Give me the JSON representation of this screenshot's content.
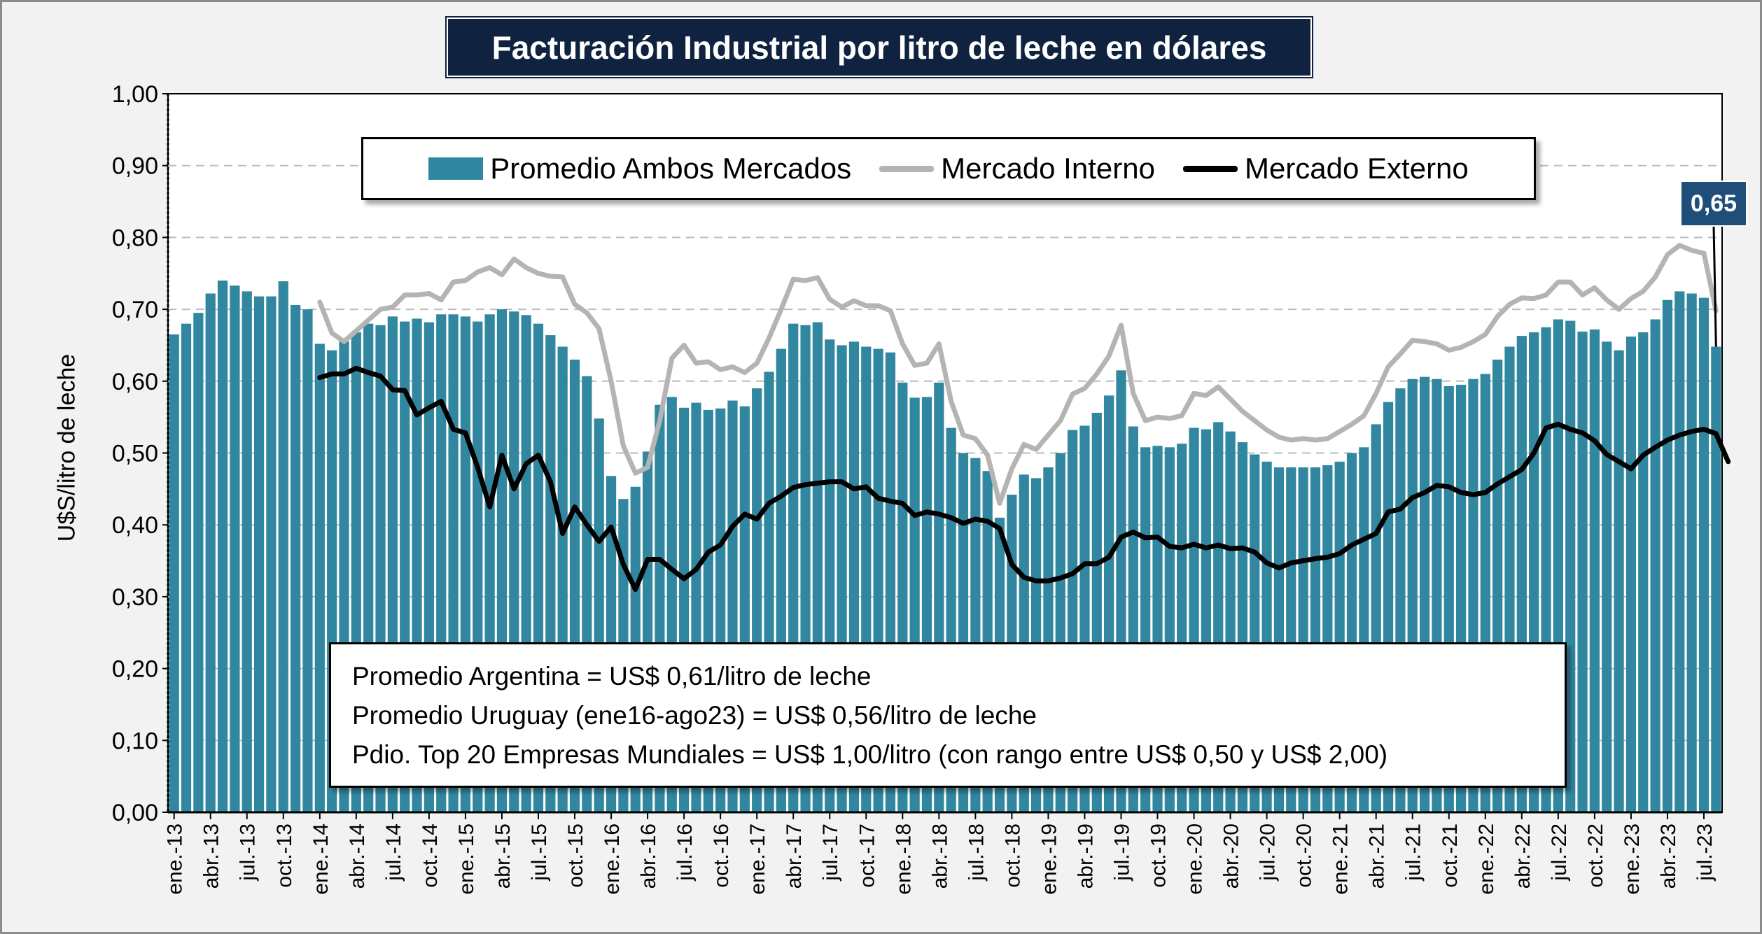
{
  "header": {
    "title": "Facturación Industrial por litro de leche en dólares"
  },
  "annotations": {
    "notes": [
      "Promedio Argentina = US$ 0,61/litro de leche",
      "Promedio Uruguay (ene16-ago23) = US$ 0,56/litro de leche",
      "Pdio. Top 20 Empresas Mundiales = US$ 1,00/litro (con rango entre US$ 0,50 y US$ 2,00)"
    ],
    "last_value_label": "0,65"
  },
  "colors": {
    "bar": "#31879f",
    "internal": "#b4b4b4",
    "external": "#000000",
    "title_bg": "#0f2340",
    "label_bg": "#1f4e79"
  },
  "chart_data": {
    "type": "bar",
    "title": "Facturación Industrial por litro de leche en dólares",
    "ylabel": "U$S/litro de leche",
    "xlabel": "",
    "ylim": [
      0,
      1
    ],
    "y_ticks": [
      "0,00",
      "0,10",
      "0,20",
      "0,30",
      "0,40",
      "0,50",
      "0,60",
      "0,70",
      "0,80",
      "0,90",
      "1,00"
    ],
    "grid": "horizontal dashed",
    "legend_position": "top-center",
    "x_tick_labels": [
      "ene.-13",
      "abr.-13",
      "jul.-13",
      "oct.-13",
      "ene.-14",
      "abr.-14",
      "jul.-14",
      "oct.-14",
      "ene.-15",
      "abr.-15",
      "jul.-15",
      "oct.-15",
      "ene.-16",
      "abr.-16",
      "jul.-16",
      "oct.-16",
      "ene.-17",
      "abr.-17",
      "jul.-17",
      "oct.-17",
      "ene.-18",
      "abr.-18",
      "jul.-18",
      "oct.-18",
      "ene.-19",
      "abr.-19",
      "jul.-19",
      "oct.-19",
      "ene.-20",
      "abr.-20",
      "jul.-20",
      "oct.-20",
      "ene.-21",
      "abr.-21",
      "jul.-21",
      "oct.-21",
      "ene.-22",
      "abr.-22",
      "jul.-22",
      "oct.-22",
      "ene.-23",
      "abr.-23",
      "jul.-23"
    ],
    "series": [
      {
        "name": "Promedio Ambos Mercados",
        "kind": "bar",
        "values": [
          0.665,
          0.68,
          0.695,
          0.722,
          0.74,
          0.733,
          0.725,
          0.718,
          0.718,
          0.739,
          0.706,
          0.7,
          0.652,
          0.643,
          0.655,
          0.668,
          0.68,
          0.678,
          0.69,
          0.683,
          0.687,
          0.682,
          0.693,
          0.693,
          0.69,
          0.683,
          0.693,
          0.7,
          0.697,
          0.692,
          0.68,
          0.664,
          0.648,
          0.63,
          0.607,
          0.548,
          0.468,
          0.436,
          0.453,
          0.502,
          0.567,
          0.578,
          0.563,
          0.57,
          0.56,
          0.562,
          0.573,
          0.565,
          0.59,
          0.613,
          0.645,
          0.68,
          0.678,
          0.682,
          0.658,
          0.65,
          0.655,
          0.648,
          0.645,
          0.64,
          0.598,
          0.577,
          0.578,
          0.598,
          0.535,
          0.5,
          0.493,
          0.475,
          0.41,
          0.442,
          0.47,
          0.465,
          0.48,
          0.5,
          0.532,
          0.538,
          0.556,
          0.58,
          0.615,
          0.537,
          0.508,
          0.51,
          0.508,
          0.513,
          0.535,
          0.533,
          0.543,
          0.53,
          0.515,
          0.498,
          0.488,
          0.48,
          0.48,
          0.48,
          0.48,
          0.483,
          0.488,
          0.5,
          0.508,
          0.54,
          0.571,
          0.59,
          0.603,
          0.606,
          0.603,
          0.593,
          0.595,
          0.603,
          0.61,
          0.63,
          0.648,
          0.663,
          0.668,
          0.675,
          0.686,
          0.684,
          0.669,
          0.672,
          0.655,
          0.643,
          0.662,
          0.668,
          0.686,
          0.713,
          0.725,
          0.722,
          0.716,
          0.648
        ]
      },
      {
        "name": "Mercado Interno",
        "kind": "line",
        "values": [
          null,
          null,
          null,
          null,
          null,
          null,
          null,
          null,
          null,
          null,
          null,
          null,
          0.71,
          0.667,
          0.655,
          0.67,
          0.685,
          0.7,
          0.703,
          0.72,
          0.72,
          0.722,
          0.713,
          0.738,
          0.74,
          0.752,
          0.758,
          0.748,
          0.77,
          0.758,
          0.75,
          0.746,
          0.745,
          0.707,
          0.695,
          0.673,
          0.6,
          0.51,
          0.472,
          0.48,
          0.545,
          0.632,
          0.65,
          0.625,
          0.627,
          0.616,
          0.62,
          0.612,
          0.625,
          0.66,
          0.7,
          0.742,
          0.74,
          0.744,
          0.714,
          0.703,
          0.712,
          0.705,
          0.705,
          0.698,
          0.652,
          0.622,
          0.625,
          0.652,
          0.572,
          0.525,
          0.52,
          0.497,
          0.43,
          0.478,
          0.512,
          0.505,
          0.525,
          0.545,
          0.582,
          0.59,
          0.61,
          0.635,
          0.678,
          0.583,
          0.545,
          0.55,
          0.548,
          0.552,
          0.583,
          0.58,
          0.592,
          0.575,
          0.558,
          0.545,
          0.532,
          0.522,
          0.518,
          0.52,
          0.518,
          0.52,
          0.53,
          0.54,
          0.552,
          0.583,
          0.62,
          0.638,
          0.657,
          0.655,
          0.652,
          0.643,
          0.647,
          0.655,
          0.665,
          0.69,
          0.707,
          0.716,
          0.715,
          0.72,
          0.738,
          0.738,
          0.72,
          0.73,
          0.713,
          0.7,
          0.715,
          0.725,
          0.745,
          0.776,
          0.789,
          0.782,
          0.778,
          0.698
        ]
      },
      {
        "name": "Mercado Externo",
        "kind": "line",
        "values": [
          null,
          null,
          null,
          null,
          null,
          null,
          null,
          null,
          null,
          null,
          null,
          null,
          0.605,
          0.61,
          0.61,
          0.618,
          0.612,
          0.607,
          0.588,
          0.587,
          0.553,
          0.563,
          0.572,
          0.533,
          0.528,
          0.48,
          0.425,
          0.497,
          0.45,
          0.485,
          0.497,
          0.46,
          0.388,
          0.425,
          0.4,
          0.377,
          0.397,
          0.345,
          0.31,
          0.352,
          0.352,
          0.338,
          0.325,
          0.338,
          0.362,
          0.372,
          0.398,
          0.415,
          0.408,
          0.43,
          0.44,
          0.452,
          0.456,
          0.458,
          0.46,
          0.46,
          0.45,
          0.453,
          0.437,
          0.433,
          0.43,
          0.413,
          0.418,
          0.415,
          0.41,
          0.402,
          0.408,
          0.405,
          0.395,
          0.345,
          0.327,
          0.322,
          0.322,
          0.326,
          0.332,
          0.346,
          0.346,
          0.355,
          0.383,
          0.39,
          0.382,
          0.383,
          0.37,
          0.368,
          0.373,
          0.368,
          0.372,
          0.367,
          0.368,
          0.362,
          0.347,
          0.34,
          0.347,
          0.35,
          0.353,
          0.355,
          0.36,
          0.372,
          0.38,
          0.388,
          0.418,
          0.422,
          0.438,
          0.445,
          0.455,
          0.453,
          0.445,
          0.442,
          0.445,
          0.457,
          0.467,
          0.477,
          0.5,
          0.535,
          0.54,
          0.533,
          0.528,
          0.517,
          0.498,
          0.488,
          0.478,
          0.497,
          0.508,
          0.518,
          0.525,
          0.53,
          0.533,
          0.527,
          0.488
        ]
      }
    ]
  }
}
